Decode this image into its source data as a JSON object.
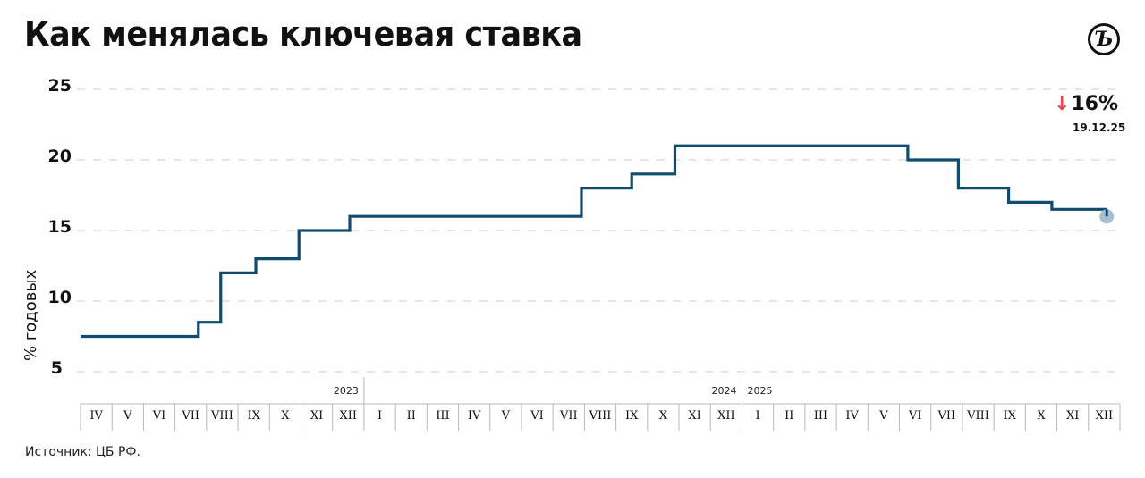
{
  "header": {
    "title": "Как менялась ключевая ставка",
    "logo_glyph": "Ъ",
    "logo_icon": "kommersant-logo-icon"
  },
  "badge": {
    "arrow_icon": "arrow-down-icon",
    "arrow_glyph": "↓",
    "value": "16%",
    "date": "19.12.25",
    "arrow_color": "#e8474c"
  },
  "footer": {
    "source": "Источник: ЦБ РФ."
  },
  "colors": {
    "line": "#0f4c6e",
    "gridline": "#d9c7c7",
    "axis": "#b8b8b8",
    "end_marker": "#a9bfcf"
  },
  "chart_data": {
    "type": "line",
    "subtype": "step",
    "title": "Как менялась ключевая ставка",
    "xlabel": "",
    "ylabel": "% годовых",
    "ylim": [
      5,
      25
    ],
    "yticks": [
      5,
      10,
      15,
      20,
      25
    ],
    "grid": "horizontal dashed",
    "x_axis": {
      "months": [
        "IV",
        "V",
        "VI",
        "VII",
        "VIII",
        "IX",
        "X",
        "XI",
        "XII",
        "I",
        "II",
        "III",
        "IV",
        "V",
        "VI",
        "VII",
        "VIII",
        "IX",
        "X",
        "XI",
        "XII",
        "I",
        "II",
        "III",
        "IV",
        "V",
        "VI",
        "VII",
        "VIII",
        "IX",
        "X",
        "XI",
        "XII"
      ],
      "year_labels": [
        {
          "label": "2023",
          "position": "end of XII 2023"
        },
        {
          "label": "2024",
          "position": "end of XII 2024"
        },
        {
          "label": "2025",
          "position": "start of I 2025"
        }
      ],
      "start": "2023-04",
      "end": "2025-12"
    },
    "series": [
      {
        "name": "Ключевая ставка",
        "points": [
          {
            "date": "2023-04-01",
            "value": 7.5
          },
          {
            "date": "2023-07-24",
            "value": 8.5
          },
          {
            "date": "2023-08-15",
            "value": 12
          },
          {
            "date": "2023-09-18",
            "value": 13
          },
          {
            "date": "2023-10-30",
            "value": 15
          },
          {
            "date": "2023-12-18",
            "value": 16
          },
          {
            "date": "2024-07-29",
            "value": 18
          },
          {
            "date": "2024-09-16",
            "value": 19
          },
          {
            "date": "2024-10-28",
            "value": 21
          },
          {
            "date": "2025-06-09",
            "value": 20
          },
          {
            "date": "2025-07-28",
            "value": 18
          },
          {
            "date": "2025-09-15",
            "value": 17
          },
          {
            "date": "2025-10-27",
            "value": 16.5
          },
          {
            "date": "2025-12-19",
            "value": 16
          }
        ]
      }
    ],
    "annotation": {
      "text": "↓16%",
      "subtext": "19.12.25"
    }
  }
}
